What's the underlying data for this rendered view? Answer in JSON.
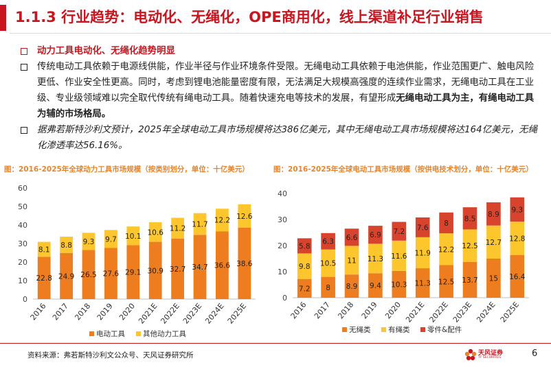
{
  "header": {
    "title": "1.1.3 行业趋势：电动化、无绳化，OPE商用化，线上渠道补足行业销售"
  },
  "bullets": {
    "b1": "动力工具电动化、无绳化趋势明显",
    "b2_part1": "传统电动工具依赖于电源线供能，作业半径与作业环境条件受限。无绳电动工具依赖于电池供能，作业范围更广、触电风险更低、作业安全性更高。同时，考虑到锂电池能量密度有限，无法满足大规模高强度的连续作业需求，无绳电动工具在工业级、专业级领域难以完全取代传统有绳电动工具。随着快速充电等技术的发展，有望形成",
    "b2_strong": "无绳电动工具为主，有绳电动工具为辅的市场格局。",
    "b3": "据弗若斯特沙利文预计，2025年全球电动工具市场规模将达386亿美元，其中无绳电动工具市场规模将达164亿美元，无绳化渗透率达56.16%。"
  },
  "chart_titles": {
    "left": "图：2016-2025年全球动力工具市场规模（按类别划分，单位：十亿美元）",
    "right": "图：2016-2025年全球电动工具市场规模（按供电技术划分，单位：十亿美元）"
  },
  "chart_data": [
    {
      "type": "bar",
      "stacked": true,
      "title": "2016-2025年全球动力工具市场规模（按类别划分，单位：十亿美元）",
      "categories": [
        "2016",
        "2017",
        "2018",
        "2019",
        "2020",
        "2021E",
        "2022E",
        "2023E",
        "2024E",
        "2025E"
      ],
      "series": [
        {
          "name": "电动工具",
          "color": "#ee7d1f",
          "values": [
            22.8,
            24.9,
            26.5,
            27.6,
            29.1,
            30.9,
            32.7,
            34.7,
            36.6,
            38.6
          ]
        },
        {
          "name": "其他动力工具",
          "color": "#fdc62c",
          "values": [
            8.1,
            8.8,
            9.3,
            9.7,
            10.1,
            10.6,
            11.2,
            11.7,
            12.2,
            12.6
          ]
        }
      ],
      "yticks": [
        "0",
        "10",
        "20",
        "30",
        "40",
        "50",
        "60"
      ],
      "ylim": [
        0,
        60
      ],
      "legend": "bottom"
    },
    {
      "type": "bar",
      "stacked": true,
      "title": "2016-2025年全球电动工具市场规模（按供电技术划分，单位：十亿美元）",
      "categories": [
        "2016",
        "2017",
        "2018",
        "2019",
        "2020",
        "2021E",
        "2022E",
        "2023E",
        "2024E",
        "2025E"
      ],
      "series": [
        {
          "name": "无绳类",
          "color": "#ee7d1f",
          "values": [
            7.2,
            8,
            8.9,
            9.4,
            10.3,
            11.3,
            12.5,
            13.7,
            15,
            16.4
          ]
        },
        {
          "name": "有绳类",
          "color": "#fdc62c",
          "values": [
            9.8,
            10.5,
            11,
            11.3,
            11.6,
            11.9,
            12.2,
            12.5,
            12.7,
            12.8
          ]
        },
        {
          "name": "零件&配件",
          "color": "#d7432d",
          "values": [
            5.8,
            6.3,
            6.6,
            6.9,
            7.2,
            7.6,
            8,
            8.5,
            8.9,
            9.3
          ]
        }
      ],
      "yticks": [
        "0",
        "10",
        "20",
        "30",
        "40"
      ],
      "ylim": [
        0,
        40
      ],
      "legend": "bottom"
    }
  ],
  "footer": {
    "source": "资料来源：弗若斯特沙利文公众号、天风证券研究所",
    "logo_text": "天风证券",
    "logo_sub": "TF SECURITIES",
    "page": "6"
  },
  "colors": {
    "accent": "#c9151e",
    "chart_title": "#e8842b"
  }
}
